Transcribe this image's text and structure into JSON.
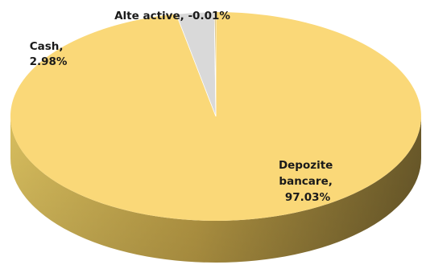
{
  "chart_data": {
    "type": "pie",
    "style": "3d",
    "title": "",
    "slices": [
      {
        "label": "Depozite bancare",
        "value": 97.03,
        "display": "97.03%",
        "color": "#FAD878"
      },
      {
        "label": "Cash",
        "value": 2.98,
        "display": "2.98%",
        "color": "#D9D9D9"
      },
      {
        "label": "Alte active",
        "value": -0.01,
        "display": "-0.01%",
        "color": "#C9A64A"
      }
    ],
    "legend": "none"
  }
}
